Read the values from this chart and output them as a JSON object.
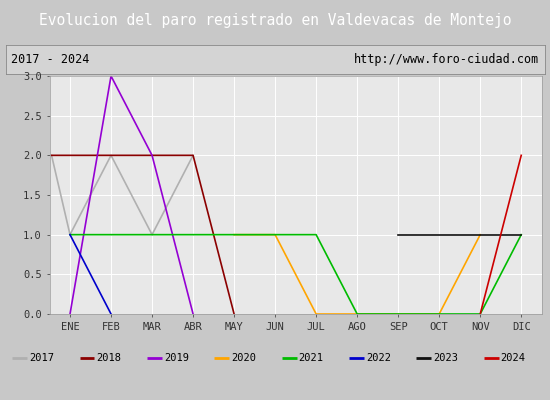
{
  "title": "Evolucion del paro registrado en Valdevacas de Montejo",
  "subtitle_left": "2017 - 2024",
  "subtitle_right": "http://www.foro-ciudad.com",
  "months": [
    "ENE",
    "FEB",
    "MAR",
    "ABR",
    "MAY",
    "JUN",
    "JUL",
    "AGO",
    "SEP",
    "OCT",
    "NOV",
    "DIC"
  ],
  "title_bg": "#3a6abf",
  "title_fg": "#ffffff",
  "subtitle_bg": "#d4d4d4",
  "plot_bg": "#e8e8e8",
  "outer_bg": "#c8c8c8",
  "legend_bg": "#d4d4d4",
  "plot_series": [
    {
      "label": "2017",
      "color": "#b0b0b0",
      "points": [
        [
          -0.45,
          2.0
        ],
        [
          0,
          1.0
        ],
        [
          1,
          2.0
        ],
        [
          2,
          1.0
        ],
        [
          3,
          2.0
        ]
      ]
    },
    {
      "label": "2018",
      "color": "#8b0000",
      "points": [
        [
          -0.45,
          2.0
        ],
        [
          0,
          2.0
        ],
        [
          1,
          2.0
        ],
        [
          2,
          2.0
        ],
        [
          3,
          2.0
        ],
        [
          4,
          0.0
        ]
      ]
    },
    {
      "label": "2019",
      "color": "#9400d3",
      "points": [
        [
          0,
          0.0
        ],
        [
          1,
          3.0
        ],
        [
          2,
          2.0
        ],
        [
          3,
          0.0
        ]
      ]
    },
    {
      "label": "2020",
      "color": "#ffa500",
      "points": [
        [
          4,
          1.0
        ],
        [
          5,
          1.0
        ],
        [
          6,
          0.0
        ],
        [
          9,
          0.0
        ],
        [
          10,
          1.0
        ]
      ]
    },
    {
      "label": "2021",
      "color": "#00bb00",
      "points": [
        [
          0,
          1.0
        ],
        [
          6,
          1.0
        ],
        [
          7,
          0.0
        ],
        [
          10,
          0.0
        ],
        [
          11,
          1.0
        ]
      ]
    },
    {
      "label": "2022",
      "color": "#0000cc",
      "points": [
        [
          0,
          1.0
        ],
        [
          1,
          0.0
        ]
      ]
    },
    {
      "label": "2023",
      "color": "#111111",
      "points": [
        [
          8,
          1.0
        ],
        [
          9,
          1.0
        ],
        [
          10,
          1.0
        ],
        [
          11,
          1.0
        ]
      ]
    },
    {
      "label": "2024",
      "color": "#cc0000",
      "points": [
        [
          10,
          0.0
        ],
        [
          11,
          2.0
        ]
      ]
    }
  ],
  "xlim": [
    -0.5,
    11.5
  ],
  "ylim": [
    0.0,
    3.0
  ],
  "yticks": [
    0.0,
    0.5,
    1.0,
    1.5,
    2.0,
    2.5,
    3.0
  ]
}
